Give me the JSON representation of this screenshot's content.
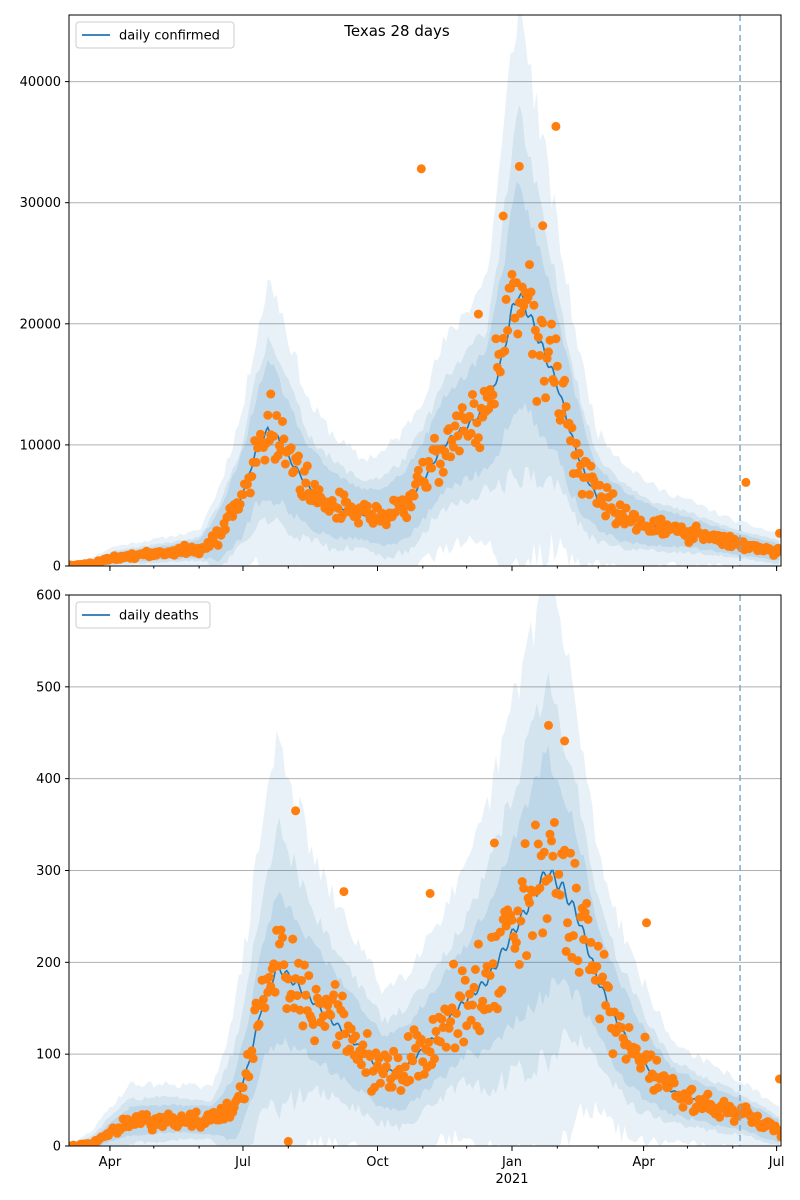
{
  "figure_title": "Texas 28 days",
  "colors": {
    "line": "#1f77b4",
    "points": "#ff7f0e",
    "band": "#1f77b4",
    "grid": "#b0b0b0",
    "forecast_line": "#7fa9c8"
  },
  "x_ticks": [
    "Apr",
    "Jul",
    "Oct",
    "Jan",
    "Apr",
    "Jul"
  ],
  "x_year_label": "2021",
  "chart_data": [
    {
      "type": "line",
      "legend": "daily confirmed",
      "legend_position": "top-left",
      "grid": "horizontal",
      "x_range": [
        "2020-03-04",
        "2021-07-04"
      ],
      "forecast_date": "2021-06-06",
      "ylim": [
        0,
        45500
      ],
      "y_ticks": [
        0,
        10000,
        20000,
        30000,
        40000
      ],
      "median": [
        [
          "2020-03-04",
          0
        ],
        [
          "2020-03-20",
          200
        ],
        [
          "2020-04-05",
          700
        ],
        [
          "2020-05-01",
          1000
        ],
        [
          "2020-06-01",
          1400
        ],
        [
          "2020-06-15",
          2500
        ],
        [
          "2020-07-01",
          6000
        ],
        [
          "2020-07-10",
          9500
        ],
        [
          "2020-07-18",
          11200
        ],
        [
          "2020-07-25",
          10500
        ],
        [
          "2020-08-01",
          9000
        ],
        [
          "2020-08-15",
          6500
        ],
        [
          "2020-09-01",
          5000
        ],
        [
          "2020-09-20",
          4300
        ],
        [
          "2020-10-05",
          4000
        ],
        [
          "2020-10-20",
          5000
        ],
        [
          "2020-11-01",
          7000
        ],
        [
          "2020-11-15",
          10000
        ],
        [
          "2020-12-01",
          11500
        ],
        [
          "2020-12-15",
          13000
        ],
        [
          "2020-12-25",
          17000
        ],
        [
          "2021-01-01",
          21000
        ],
        [
          "2021-01-05",
          22500
        ],
        [
          "2021-01-12",
          21000
        ],
        [
          "2021-01-20",
          18500
        ],
        [
          "2021-02-01",
          15000
        ],
        [
          "2021-02-10",
          11000
        ],
        [
          "2021-02-20",
          7500
        ],
        [
          "2021-03-01",
          5500
        ],
        [
          "2021-03-20",
          4000
        ],
        [
          "2021-04-10",
          3200
        ],
        [
          "2021-05-01",
          2800
        ],
        [
          "2021-06-01",
          1900
        ],
        [
          "2021-07-04",
          1100
        ]
      ],
      "band_inner_halfwidth": [
        [
          "2020-03-04",
          0
        ],
        [
          "2020-04-01",
          400
        ],
        [
          "2020-06-01",
          700
        ],
        [
          "2020-07-01",
          3500
        ],
        [
          "2020-07-20",
          5500
        ],
        [
          "2020-08-15",
          3200
        ],
        [
          "2020-09-20",
          2000
        ],
        [
          "2020-11-01",
          3200
        ],
        [
          "2020-12-15",
          5000
        ],
        [
          "2021-01-05",
          9000
        ],
        [
          "2021-02-01",
          6000
        ],
        [
          "2021-03-01",
          2500
        ],
        [
          "2021-04-10",
          1500
        ],
        [
          "2021-06-01",
          900
        ],
        [
          "2021-07-04",
          700
        ]
      ],
      "band_outer_halfwidth": [
        [
          "2020-03-04",
          0
        ],
        [
          "2020-04-01",
          900
        ],
        [
          "2020-06-01",
          1500
        ],
        [
          "2020-07-01",
          7000
        ],
        [
          "2020-07-20",
          12500
        ],
        [
          "2020-08-15",
          7000
        ],
        [
          "2020-09-20",
          4500
        ],
        [
          "2020-11-01",
          7000
        ],
        [
          "2020-12-15",
          11000
        ],
        [
          "2021-01-05",
          24000
        ],
        [
          "2021-02-01",
          13000
        ],
        [
          "2021-03-01",
          5500
        ],
        [
          "2021-04-10",
          3200
        ],
        [
          "2021-06-01",
          1900
        ],
        [
          "2021-07-04",
          1500
        ]
      ],
      "outliers": [
        [
          "2020-10-31",
          32800
        ],
        [
          "2021-01-06",
          33000
        ],
        [
          "2021-01-31",
          36300
        ],
        [
          "2020-12-09",
          20800
        ],
        [
          "2020-12-26",
          28900
        ],
        [
          "2021-01-22",
          28100
        ],
        [
          "2021-06-10",
          6900
        ],
        [
          "2021-07-03",
          2700
        ],
        [
          "2020-07-20",
          14200
        ]
      ]
    },
    {
      "type": "line",
      "legend": "daily deaths",
      "legend_position": "top-left",
      "grid": "horizontal",
      "x_range": [
        "2020-03-04",
        "2021-07-04"
      ],
      "forecast_date": "2021-06-06",
      "ylim": [
        0,
        600
      ],
      "y_ticks": [
        0,
        100,
        200,
        300,
        400,
        500,
        600
      ],
      "median": [
        [
          "2020-03-04",
          0
        ],
        [
          "2020-03-20",
          2
        ],
        [
          "2020-04-01",
          15
        ],
        [
          "2020-04-15",
          27
        ],
        [
          "2020-05-15",
          30
        ],
        [
          "2020-06-10",
          28
        ],
        [
          "2020-06-25",
          40
        ],
        [
          "2020-07-05",
          90
        ],
        [
          "2020-07-15",
          160
        ],
        [
          "2020-07-25",
          195
        ],
        [
          "2020-08-01",
          185
        ],
        [
          "2020-08-10",
          170
        ],
        [
          "2020-08-20",
          155
        ],
        [
          "2020-09-01",
          135
        ],
        [
          "2020-09-20",
          105
        ],
        [
          "2020-10-05",
          80
        ],
        [
          "2020-10-20",
          85
        ],
        [
          "2020-11-01",
          105
        ],
        [
          "2020-11-15",
          130
        ],
        [
          "2020-12-01",
          160
        ],
        [
          "2020-12-15",
          180
        ],
        [
          "2021-01-01",
          230
        ],
        [
          "2021-01-15",
          270
        ],
        [
          "2021-01-25",
          300
        ],
        [
          "2021-02-05",
          280
        ],
        [
          "2021-02-15",
          250
        ],
        [
          "2021-03-01",
          180
        ],
        [
          "2021-03-15",
          130
        ],
        [
          "2021-04-01",
          90
        ],
        [
          "2021-04-20",
          60
        ],
        [
          "2021-05-15",
          45
        ],
        [
          "2021-06-06",
          35
        ],
        [
          "2021-07-04",
          15
        ]
      ],
      "band_inner_halfwidth": [
        [
          "2020-03-04",
          0
        ],
        [
          "2020-04-15",
          15
        ],
        [
          "2020-06-10",
          15
        ],
        [
          "2020-07-25",
          80
        ],
        [
          "2020-08-20",
          60
        ],
        [
          "2020-10-05",
          40
        ],
        [
          "2020-12-01",
          60
        ],
        [
          "2021-01-25",
          130
        ],
        [
          "2021-03-01",
          60
        ],
        [
          "2021-04-20",
          25
        ],
        [
          "2021-07-04",
          12
        ]
      ],
      "band_outer_halfwidth": [
        [
          "2020-03-04",
          0
        ],
        [
          "2020-04-15",
          40
        ],
        [
          "2020-06-10",
          35
        ],
        [
          "2020-07-25",
          250
        ],
        [
          "2020-08-20",
          150
        ],
        [
          "2020-10-05",
          90
        ],
        [
          "2020-12-01",
          140
        ],
        [
          "2021-01-25",
          330
        ],
        [
          "2021-03-01",
          140
        ],
        [
          "2021-04-20",
          55
        ],
        [
          "2021-07-04",
          25
        ]
      ],
      "outliers": [
        [
          "2020-08-06",
          365
        ],
        [
          "2020-08-01",
          5
        ],
        [
          "2020-09-08",
          277
        ],
        [
          "2020-11-06",
          275
        ],
        [
          "2021-01-26",
          458
        ],
        [
          "2021-02-06",
          441
        ],
        [
          "2021-04-03",
          243
        ],
        [
          "2021-07-03",
          73
        ],
        [
          "2020-12-20",
          330
        ]
      ]
    }
  ]
}
